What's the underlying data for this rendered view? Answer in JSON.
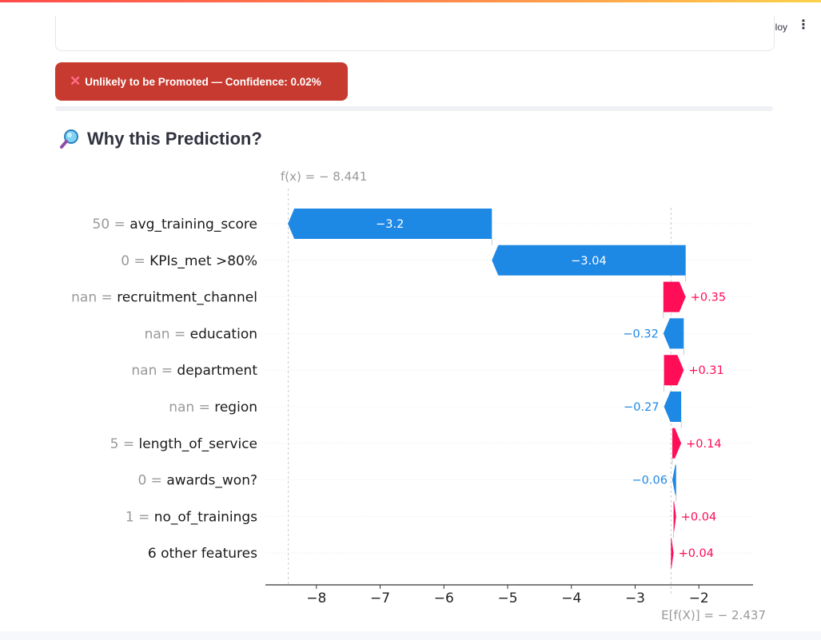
{
  "header": {
    "deploy_label": "Deploy",
    "menu_icon": "kebab-icon"
  },
  "alert": {
    "icon": "close-icon",
    "text": "Unlikely to be Promoted — Confidence: 0.02%",
    "color": "#c73a2f"
  },
  "section": {
    "icon": "magnifier-icon",
    "title": "Why this Prediction?"
  },
  "chart_data": {
    "type": "waterfall",
    "fx_label": "f(x) = − 8.441",
    "efx_label": "E[f(X)] = − 2.437",
    "fx": -8.441,
    "efx": -2.437,
    "xlim": [
      -8.8,
      -1.15
    ],
    "xticks": [
      -8,
      -7,
      -6,
      -5,
      -4,
      -3,
      -2
    ],
    "xtick_labels": [
      "−8",
      "−7",
      "−6",
      "−5",
      "−4",
      "−3",
      "−2"
    ],
    "positive_color": "#ff0d57",
    "negative_color": "#1e88e5",
    "features": [
      {
        "value": "50",
        "name": "avg_training_score",
        "contribution": -3.2,
        "label": "−3.2"
      },
      {
        "value": "0",
        "name": "KPIs_met >80%",
        "contribution": -3.04,
        "label": "−3.04"
      },
      {
        "value": "nan",
        "name": "recruitment_channel",
        "contribution": 0.35,
        "label": "+0.35"
      },
      {
        "value": "nan",
        "name": "education",
        "contribution": -0.32,
        "label": "−0.32"
      },
      {
        "value": "nan",
        "name": "department",
        "contribution": 0.31,
        "label": "+0.31"
      },
      {
        "value": "nan",
        "name": "region",
        "contribution": -0.27,
        "label": "−0.27"
      },
      {
        "value": "5",
        "name": "length_of_service",
        "contribution": 0.14,
        "label": "+0.14"
      },
      {
        "value": "0",
        "name": "awards_won?",
        "contribution": -0.06,
        "label": "−0.06"
      },
      {
        "value": "1",
        "name": "no_of_trainings",
        "contribution": 0.04,
        "label": "+0.04"
      },
      {
        "value": "",
        "name": "6 other features",
        "contribution": 0.04,
        "label": "+0.04"
      }
    ]
  }
}
